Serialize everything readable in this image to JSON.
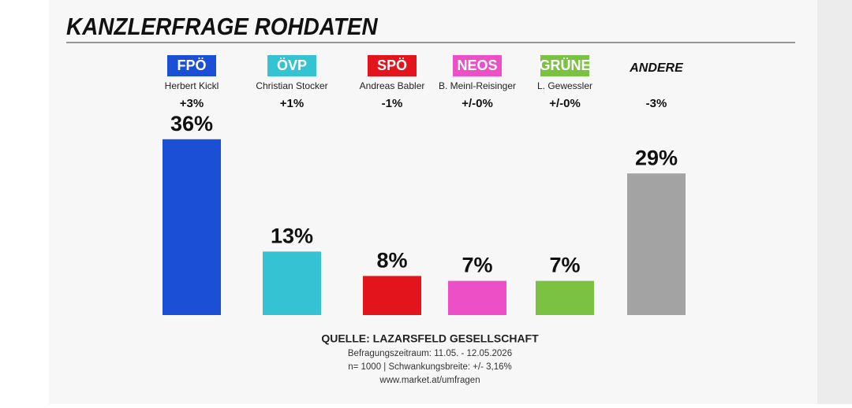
{
  "chart_data": {
    "type": "bar",
    "title": "KANZLERFRAGE ROHDATEN",
    "categories": [
      "FPÖ",
      "ÖVP",
      "SPÖ",
      "NEOS",
      "GRÜNE",
      "ANDERE"
    ],
    "candidates": [
      "Herbert Kickl",
      "Christian Stocker",
      "Andreas Babler",
      "B. Meinl-Reisinger",
      "L. Gewessler",
      null
    ],
    "changes": [
      "+3%",
      "+1%",
      "-1%",
      "+/-0%",
      "+/-0%",
      "-3%"
    ],
    "values": [
      36,
      13,
      8,
      7,
      7,
      29
    ],
    "value_labels": [
      "36%",
      "13%",
      "8%",
      "7%",
      "7%",
      "29%"
    ],
    "colors": [
      "#1a4fd6",
      "#35c3d3",
      "#e3141c",
      "#ec4fc6",
      "#7cc242",
      "#a3a3a3"
    ],
    "footer": {
      "source": "QUELLE: LAZARSFELD GESELLSCHAFT",
      "period": "Befragungszeitraum: 11.05. - 12.05.2026",
      "sample": "n= 1000 | Schwankungsbreite: +/- 3,16%",
      "url": "www.market.at/umfragen"
    }
  }
}
